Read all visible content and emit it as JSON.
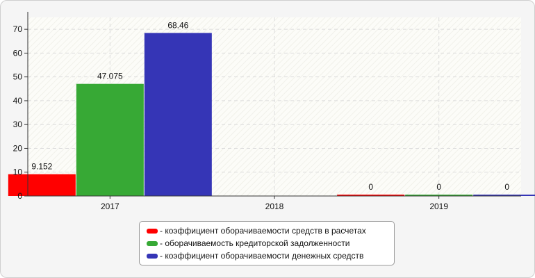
{
  "chart_data": {
    "type": "bar",
    "categories": [
      "2017",
      "2018",
      "2019"
    ],
    "series": [
      {
        "name": "- коэффициент оборачиваемости средств в расчетах",
        "color": "#ff0000",
        "values": [
          9.152,
          null,
          0
        ],
        "labels": [
          "9.152",
          "",
          "0"
        ]
      },
      {
        "name": "- оборачиваемость кредиторской задолженности",
        "color": "#37a935",
        "values": [
          47.075,
          null,
          0
        ],
        "labels": [
          "47.075",
          "",
          "0"
        ]
      },
      {
        "name": "- коэффициент оборачиваемости денежных средств",
        "color": "#3535b6",
        "values": [
          68.46,
          null,
          0
        ],
        "labels": [
          "68.46",
          "",
          "0"
        ]
      }
    ],
    "yticks": [
      0,
      10,
      20,
      30,
      40,
      50,
      60,
      70
    ],
    "ylim": [
      0,
      75
    ],
    "grid": true,
    "legend_position": "bottom"
  }
}
